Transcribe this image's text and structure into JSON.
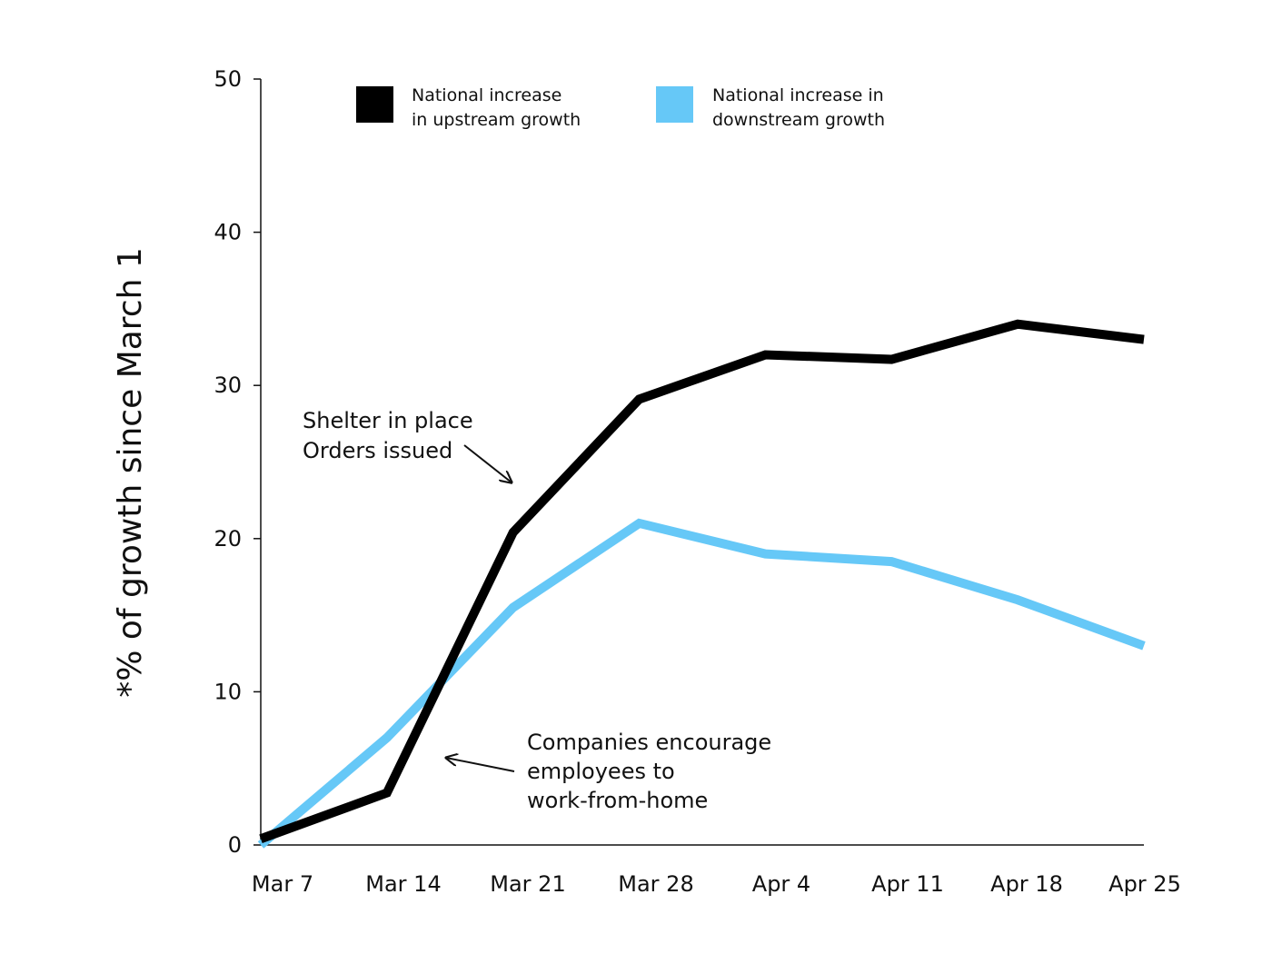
{
  "chart_data": {
    "type": "line",
    "title": "",
    "xlabel": "",
    "ylabel": "*% of growth since March 1",
    "ylim": [
      0,
      50
    ],
    "yticks": [
      0,
      10,
      20,
      30,
      40,
      50
    ],
    "grid": false,
    "legend_position": "top",
    "categories": [
      "Mar 7",
      "Mar 14",
      "Mar 21",
      "Mar 28",
      "Apr 4",
      "Apr 11",
      "Apr 18",
      "Apr 25"
    ],
    "series": [
      {
        "name": "National increase in upstream growth",
        "legend_lines": [
          "National increase",
          "in upstream growth"
        ],
        "color": "#000000",
        "values": [
          0.4,
          3.4,
          20.4,
          29.1,
          32.0,
          31.7,
          34.0,
          33.0
        ]
      },
      {
        "name": "National increase in downstream growth",
        "legend_lines": [
          "National increase in",
          "downstream growth"
        ],
        "color": "#66c8f7",
        "values": [
          0.0,
          7.0,
          15.5,
          21.0,
          19.0,
          18.5,
          16.0,
          13.0
        ]
      }
    ],
    "annotations": [
      {
        "id": "shelter",
        "lines": [
          "Shelter in place",
          "Orders issued"
        ]
      },
      {
        "id": "wfh",
        "lines": [
          "Companies encourage",
          "employees to",
          "work-from-home"
        ]
      }
    ]
  }
}
